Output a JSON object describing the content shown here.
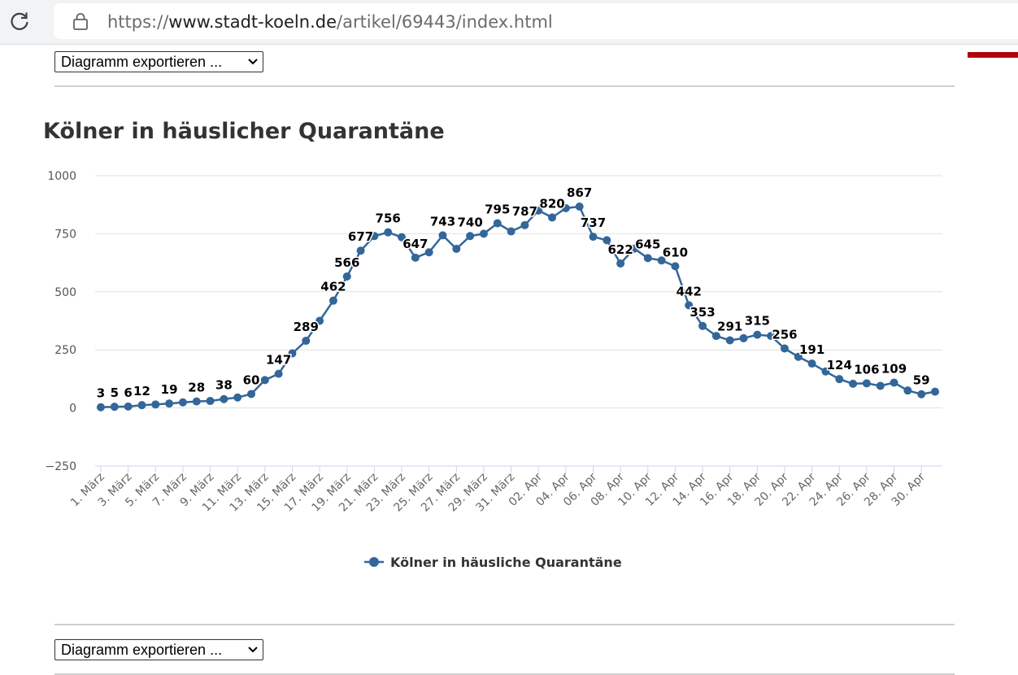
{
  "browser": {
    "url_scheme": "https://",
    "url_host": "www.stadt-koeln.de",
    "url_path": "/artikel/69443/index.html"
  },
  "export_top": {
    "label": "Diagramm exportieren ..."
  },
  "export_bottom": {
    "label": "Diagramm exportieren ..."
  },
  "colors": {
    "series": "#336699",
    "grid": "#e0e0e0",
    "accent": "#b0050d"
  },
  "chart_data": {
    "type": "line",
    "title": "Kölner in häuslicher Quarantäne",
    "xlabel": "",
    "ylabel": "",
    "ylim": [
      -250,
      1000
    ],
    "yticks": [
      1000,
      750,
      500,
      250,
      0,
      -250
    ],
    "legend": "bottom-center",
    "x": [
      "1. März",
      "2. März",
      "3. März",
      "4. März",
      "5. März",
      "6. März",
      "7. März",
      "8. März",
      "9. März",
      "10. März",
      "11. März",
      "12. März",
      "13. März",
      "14. März",
      "15. März",
      "16. März",
      "17. März",
      "18. März",
      "19. März",
      "20. März",
      "21. März",
      "22. März",
      "23. März",
      "24. März",
      "25. März",
      "26. März",
      "27. März",
      "28. März",
      "29. März",
      "30. März",
      "31. März",
      "01. Apr",
      "02. Apr",
      "03. Apr",
      "04. Apr",
      "05. Apr",
      "06. Apr",
      "07. Apr",
      "08. Apr",
      "09. Apr",
      "10. Apr",
      "11. Apr",
      "12. Apr",
      "13. Apr",
      "14. Apr",
      "15. Apr",
      "16. Apr",
      "17. Apr",
      "18. Apr",
      "19. Apr",
      "20. Apr",
      "21. Apr",
      "22. Apr",
      "23. Apr",
      "24. Apr",
      "25. Apr",
      "26. Apr",
      "27. Apr",
      "28. Apr",
      "29. Apr",
      "30. Apr",
      "01. Mai"
    ],
    "xtick_labels": [
      "1. März",
      "3. März",
      "5. März",
      "7. März",
      "9. März",
      "11. März",
      "13. März",
      "15. März",
      "17. März",
      "19. März",
      "21. März",
      "23. März",
      "25. März",
      "27. März",
      "29. März",
      "31. März",
      "02. Apr",
      "04. Apr",
      "06. Apr",
      "08. Apr",
      "10. Apr",
      "12. Apr",
      "14. Apr",
      "16. Apr",
      "18. Apr",
      "20. Apr",
      "22. Apr",
      "24. Apr",
      "26. Apr",
      "28. Apr",
      "30. Apr"
    ],
    "series": [
      {
        "name": "Kölner in häusliche Quarantäne",
        "values": [
          3,
          5,
          6,
          12,
          15,
          19,
          24,
          28,
          30,
          38,
          45,
          60,
          120,
          147,
          235,
          289,
          375,
          462,
          566,
          677,
          740,
          756,
          735,
          647,
          670,
          743,
          685,
          740,
          750,
          795,
          760,
          787,
          850,
          820,
          860,
          867,
          737,
          722,
          622,
          686,
          645,
          635,
          610,
          442,
          353,
          310,
          291,
          300,
          315,
          310,
          256,
          220,
          191,
          157,
          124,
          104,
          106,
          95,
          109,
          75,
          59,
          70
        ],
        "labels": [
          "3",
          "5",
          "6",
          "12",
          "",
          "19",
          "",
          "28",
          "",
          "38",
          "",
          "60",
          "",
          "147",
          "",
          "289",
          "",
          "462",
          "566",
          "677",
          "",
          "756",
          "",
          "647",
          "",
          "743",
          "",
          "740",
          "",
          "795",
          "",
          "787",
          "",
          "820",
          "",
          "867",
          "737",
          "",
          "622",
          "",
          "645",
          "",
          "610",
          "442",
          "353",
          "",
          "291",
          "",
          "315",
          "",
          "256",
          "",
          "191",
          "",
          "124",
          "",
          "106",
          "",
          "109",
          "",
          "59",
          ""
        ]
      }
    ]
  }
}
